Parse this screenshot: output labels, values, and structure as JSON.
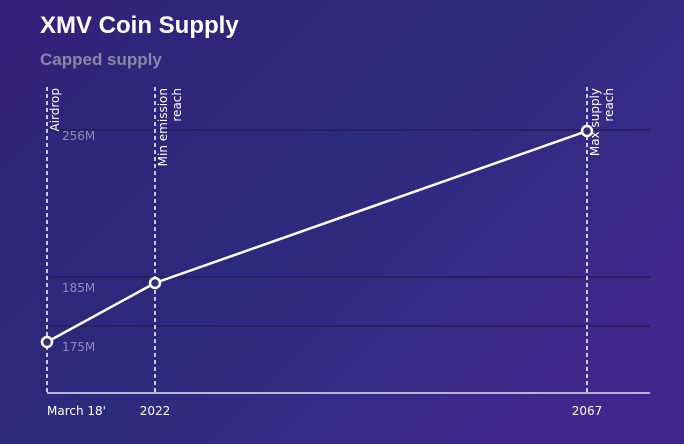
{
  "chart_data": {
    "type": "line",
    "title": "XMV Coin Supply",
    "subtitle": "Capped supply",
    "x": [
      "March 18'",
      "2022",
      "2067"
    ],
    "x_years": [
      2018.2,
      2022,
      2067
    ],
    "series": [
      {
        "values": [
          175,
          185,
          256
        ]
      }
    ],
    "y_ticks": [
      {
        "value": 175,
        "label": "175M"
      },
      {
        "value": 185,
        "label": "185M"
      },
      {
        "value": 256,
        "label": "256M"
      }
    ],
    "annotations": [
      {
        "x": 2018.2,
        "lines": [
          "Airdrop"
        ]
      },
      {
        "x": 2022,
        "lines": [
          "Min emission",
          "reach"
        ]
      },
      {
        "x": 2067,
        "lines": [
          "Max supply",
          "reach"
        ]
      }
    ],
    "grid": true,
    "line_color": "#ffffff",
    "grid_color": "#2a1e5e",
    "axis_color": "#b8b4d8"
  }
}
